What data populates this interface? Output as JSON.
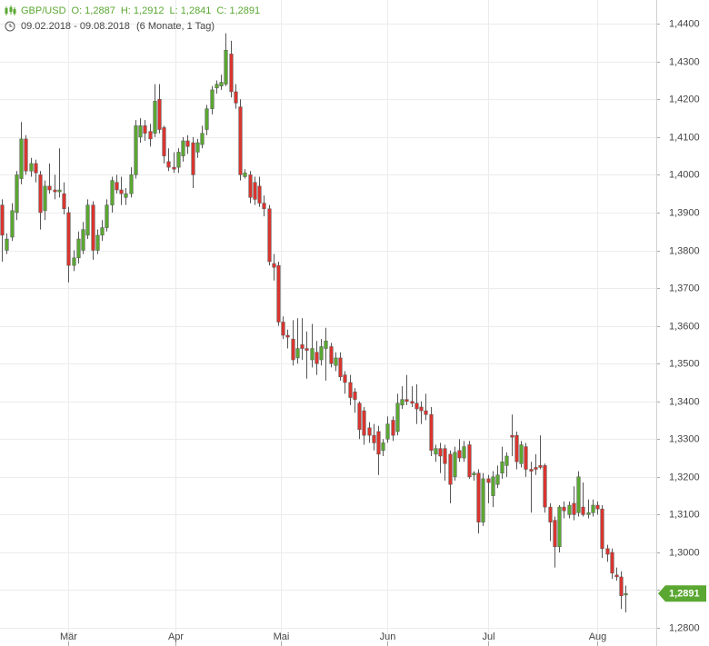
{
  "chart_data": {
    "type": "candlestick",
    "symbol": "GBP/USD",
    "ohlc_labels": [
      "O: 1,2887",
      "H: 1,2912",
      "L: 1,2841",
      "C: 1,2891"
    ],
    "date_range": "09.02.2018 - 09.08.2018",
    "period": "(6 Monate, 1 Tag)",
    "up_color": "#5aa732",
    "down_color": "#d9352f",
    "grid": true,
    "last_price": {
      "value": 1.2891,
      "label": "1,2891"
    },
    "xlim": [
      -0.4,
      137.4
    ],
    "xticks": [
      {
        "value": 14,
        "label": "Mär"
      },
      {
        "value": 36.5,
        "label": "Apr"
      },
      {
        "value": 58.5,
        "label": "Mai"
      },
      {
        "value": 81,
        "label": "Jun"
      },
      {
        "value": 102,
        "label": "Jul"
      },
      {
        "value": 125,
        "label": "Aug"
      }
    ],
    "ylim": [
      1.2752,
      1.4463
    ],
    "yticks": [
      {
        "value": 1.28,
        "label": "1,2800"
      },
      {
        "value": 1.29,
        "label": "1,2900"
      },
      {
        "value": 1.3,
        "label": "1,3000"
      },
      {
        "value": 1.31,
        "label": "1,3100"
      },
      {
        "value": 1.32,
        "label": "1,3200"
      },
      {
        "value": 1.33,
        "label": "1,3300"
      },
      {
        "value": 1.34,
        "label": "1,3400"
      },
      {
        "value": 1.35,
        "label": "1,3500"
      },
      {
        "value": 1.36,
        "label": "1,3600"
      },
      {
        "value": 1.37,
        "label": "1,3700"
      },
      {
        "value": 1.38,
        "label": "1,3800"
      },
      {
        "value": 1.39,
        "label": "1,3900"
      },
      {
        "value": 1.4,
        "label": "1,4000"
      },
      {
        "value": 1.41,
        "label": "1,4100"
      },
      {
        "value": 1.42,
        "label": "1,4200"
      },
      {
        "value": 1.43,
        "label": "1,4300"
      },
      {
        "value": 1.44,
        "label": "1,4400"
      }
    ],
    "open": [
      1.392,
      1.38,
      1.3835,
      1.39,
      1.399,
      1.4095,
      1.401,
      1.403,
      1.4,
      1.3905,
      1.397,
      1.396,
      1.3955,
      1.395,
      1.39,
      1.376,
      1.378,
      1.38,
      1.384,
      1.392,
      1.38,
      1.384,
      1.386,
      1.392,
      1.398,
      1.396,
      1.394,
      1.395,
      1.4,
      1.41,
      1.413,
      1.4115,
      1.411,
      1.42,
      1.4125,
      1.4035,
      1.402,
      1.402,
      1.405,
      1.409,
      1.4085,
      1.406,
      1.408,
      1.412,
      1.4175,
      1.423,
      1.4235,
      1.424,
      1.432,
      1.422,
      1.418,
      1.3995,
      1.4,
      1.398,
      1.397,
      1.3925,
      1.391,
      1.3765,
      1.376,
      1.361,
      1.3575,
      1.3565,
      1.3515,
      1.355,
      1.354,
      1.351,
      1.353,
      1.351,
      1.354,
      1.3545,
      1.3495,
      1.3515,
      1.347,
      1.345,
      1.3425,
      1.3395,
      1.3375,
      1.333,
      1.331,
      1.332,
      1.327,
      1.33,
      1.335,
      1.332,
      1.339,
      1.3405,
      1.34,
      1.3395,
      1.3385,
      1.3375,
      1.3365,
      1.326,
      1.3275,
      1.3275,
      1.326,
      1.32,
      1.327,
      1.325,
      1.3285,
      1.3205,
      1.321,
      1.308,
      1.3195,
      1.315,
      1.318,
      1.321,
      1.323,
      1.331,
      1.331,
      1.3235,
      1.328,
      1.322,
      1.3225,
      1.323,
      1.323,
      1.312,
      1.3085,
      1.3015,
      1.312,
      1.31,
      1.313,
      1.3105,
      1.312,
      1.31,
      1.3105,
      1.3125,
      1.3115,
      1.301,
      1.3,
      1.294,
      1.2935,
      1.2887
    ],
    "high": [
      1.3935,
      1.3845,
      1.3925,
      1.401,
      1.414,
      1.4105,
      1.4045,
      1.404,
      1.401,
      1.3985,
      1.403,
      1.4,
      1.407,
      1.398,
      1.3915,
      1.38,
      1.385,
      1.3875,
      1.3935,
      1.393,
      1.3855,
      1.388,
      1.3935,
      1.3995,
      1.4,
      1.3995,
      1.3965,
      1.402,
      1.4145,
      1.415,
      1.4145,
      1.4135,
      1.424,
      1.424,
      1.413,
      1.407,
      1.406,
      1.407,
      1.41,
      1.4105,
      1.41,
      1.4095,
      1.413,
      1.4185,
      1.4235,
      1.425,
      1.4265,
      1.4375,
      1.4355,
      1.424,
      1.42,
      1.4015,
      1.401,
      1.3995,
      1.3995,
      1.3945,
      1.392,
      1.379,
      1.377,
      1.3625,
      1.359,
      1.3615,
      1.362,
      1.362,
      1.3585,
      1.3605,
      1.356,
      1.3565,
      1.3595,
      1.3555,
      1.353,
      1.353,
      1.348,
      1.347,
      1.3435,
      1.34,
      1.3385,
      1.3345,
      1.334,
      1.3335,
      1.33,
      1.336,
      1.336,
      1.342,
      1.344,
      1.347,
      1.344,
      1.3445,
      1.34,
      1.342,
      1.3385,
      1.3285,
      1.329,
      1.3285,
      1.327,
      1.328,
      1.33,
      1.3295,
      1.3295,
      1.3215,
      1.322,
      1.321,
      1.3205,
      1.3215,
      1.323,
      1.328,
      1.3265,
      1.3365,
      1.332,
      1.3295,
      1.329,
      1.324,
      1.326,
      1.331,
      1.3235,
      1.313,
      1.3095,
      1.3125,
      1.3135,
      1.3135,
      1.3175,
      1.3215,
      1.3185,
      1.314,
      1.314,
      1.3135,
      1.3125,
      1.302,
      1.301,
      1.296,
      1.295,
      1.2912
    ],
    "low": [
      1.377,
      1.379,
      1.3825,
      1.388,
      1.3975,
      1.4,
      1.3995,
      1.398,
      1.3855,
      1.388,
      1.395,
      1.3935,
      1.394,
      1.3895,
      1.3715,
      1.3745,
      1.3765,
      1.379,
      1.383,
      1.3775,
      1.379,
      1.3825,
      1.385,
      1.39,
      1.395,
      1.392,
      1.392,
      1.394,
      1.399,
      1.4085,
      1.409,
      1.4075,
      1.41,
      1.411,
      1.403,
      1.401,
      1.4005,
      1.4005,
      1.4035,
      1.4055,
      1.3965,
      1.4045,
      1.407,
      1.4105,
      1.416,
      1.4215,
      1.4225,
      1.4235,
      1.4205,
      1.4175,
      1.3985,
      1.399,
      1.3925,
      1.392,
      1.3915,
      1.389,
      1.376,
      1.372,
      1.36,
      1.3565,
      1.354,
      1.3495,
      1.35,
      1.351,
      1.346,
      1.349,
      1.347,
      1.3495,
      1.3455,
      1.349,
      1.348,
      1.3455,
      1.342,
      1.339,
      1.337,
      1.33,
      1.3285,
      1.329,
      1.327,
      1.3205,
      1.3255,
      1.329,
      1.3295,
      1.331,
      1.338,
      1.339,
      1.3385,
      1.334,
      1.334,
      1.335,
      1.3255,
      1.324,
      1.321,
      1.319,
      1.313,
      1.319,
      1.324,
      1.324,
      1.3195,
      1.319,
      1.305,
      1.307,
      1.313,
      1.312,
      1.317,
      1.3195,
      1.32,
      1.3255,
      1.322,
      1.3225,
      1.32,
      1.3105,
      1.3205,
      1.322,
      1.3105,
      1.303,
      1.296,
      1.3,
      1.309,
      1.309,
      1.3085,
      1.3095,
      1.3095,
      1.309,
      1.3095,
      1.31,
      1.2985,
      1.2975,
      1.293,
      1.2925,
      1.285,
      1.2841
    ],
    "close": [
      1.384,
      1.383,
      1.3905,
      1.4,
      1.4095,
      1.401,
      1.403,
      1.4005,
      1.39,
      1.397,
      1.396,
      1.3955,
      1.396,
      1.391,
      1.376,
      1.378,
      1.383,
      1.3855,
      1.392,
      1.38,
      1.384,
      1.386,
      1.392,
      1.3985,
      1.396,
      1.395,
      1.395,
      1.4,
      1.413,
      1.413,
      1.411,
      1.4095,
      1.4195,
      1.412,
      1.405,
      1.402,
      1.4015,
      1.406,
      1.409,
      1.4075,
      1.4,
      1.4085,
      1.411,
      1.4175,
      1.4225,
      1.424,
      1.4245,
      1.433,
      1.422,
      1.419,
      1.4,
      1.4005,
      1.394,
      1.3935,
      1.3925,
      1.391,
      1.377,
      1.3755,
      1.361,
      1.3575,
      1.357,
      1.351,
      1.354,
      1.354,
      1.3535,
      1.354,
      1.35,
      1.3545,
      1.356,
      1.35,
      1.3515,
      1.3465,
      1.345,
      1.341,
      1.3405,
      1.3325,
      1.331,
      1.331,
      1.329,
      1.326,
      1.329,
      1.334,
      1.331,
      1.3395,
      1.3405,
      1.34,
      1.3395,
      1.338,
      1.3375,
      1.3365,
      1.327,
      1.3275,
      1.3255,
      1.3235,
      1.318,
      1.3265,
      1.325,
      1.328,
      1.32,
      1.321,
      1.308,
      1.3195,
      1.3185,
      1.32,
      1.3205,
      1.324,
      1.3255,
      1.3305,
      1.324,
      1.3285,
      1.322,
      1.3215,
      1.322,
      1.3225,
      1.312,
      1.308,
      1.3015,
      1.312,
      1.311,
      1.3125,
      1.31,
      1.32,
      1.31,
      1.3105,
      1.3125,
      1.3115,
      1.301,
      1.2995,
      1.2945,
      1.2935,
      1.2885,
      1.2891
    ]
  }
}
